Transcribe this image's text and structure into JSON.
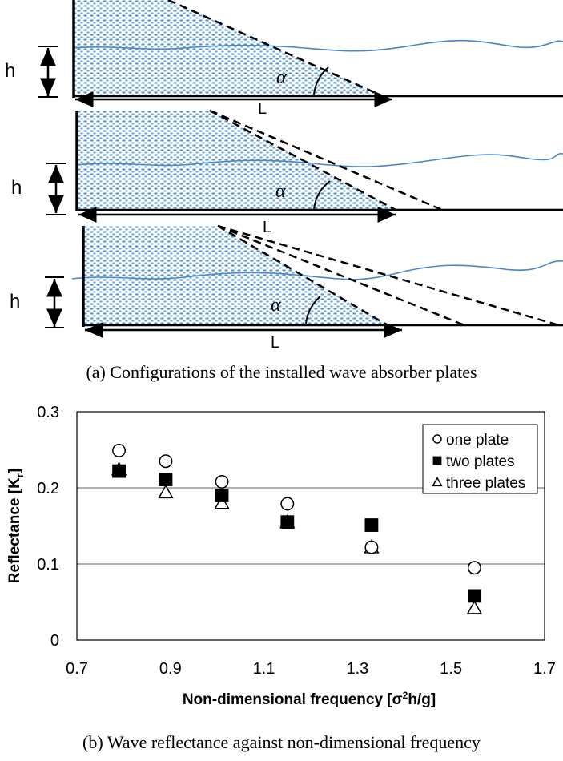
{
  "figure_a": {
    "caption": "(a) Configurations of the installed wave absorber plates",
    "panels": [
      {
        "depth_label": "h",
        "length_label": "L",
        "angle_label": "α",
        "plates": 1
      },
      {
        "depth_label": "h",
        "length_label": "L",
        "angle_label": "α",
        "plates": 2
      },
      {
        "depth_label": "h",
        "length_label": "L",
        "angle_label": "α",
        "plates": 3
      }
    ]
  },
  "figure_b": {
    "caption": "(b) Wave reflectance against non-dimensional frequency"
  },
  "chart_data": {
    "type": "scatter",
    "title": "",
    "xlabel": "Non-dimensional frequency [σ²h/g]",
    "ylabel": "Reflectance [Kr]",
    "xlim": [
      0.7,
      1.7
    ],
    "ylim": [
      0,
      0.3
    ],
    "xticks": [
      "0.7",
      "0.9",
      "1.1",
      "1.3",
      "1.5",
      "1.7"
    ],
    "yticks": [
      "0",
      "0.1",
      "0.2",
      "0.3"
    ],
    "grid": "horizontal",
    "legend_position": "top-right",
    "series": [
      {
        "name": "one plate",
        "marker": "open-circle",
        "x": [
          0.79,
          0.89,
          1.01,
          1.15,
          1.33,
          1.55
        ],
        "y": [
          0.249,
          0.235,
          0.208,
          0.179,
          0.122,
          0.095
        ]
      },
      {
        "name": "two plates",
        "marker": "filled-square",
        "x": [
          0.79,
          0.89,
          1.01,
          1.15,
          1.33,
          1.55
        ],
        "y": [
          0.222,
          0.211,
          0.19,
          0.155,
          0.151,
          0.058
        ]
      },
      {
        "name": "three plates",
        "marker": "open-triangle",
        "x": [
          0.79,
          0.89,
          1.01,
          1.15,
          1.33,
          1.55
        ],
        "y": [
          0.224,
          0.194,
          0.18,
          0.155,
          0.122,
          0.042
        ]
      }
    ]
  }
}
